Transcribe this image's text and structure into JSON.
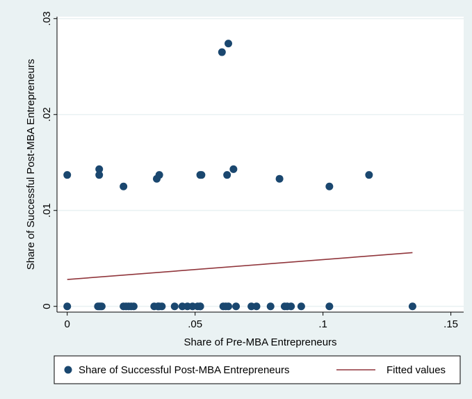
{
  "colors": {
    "outer_background": "#eaf2f3",
    "plot_background": "#ffffff",
    "grid": "#eaf2f3",
    "marker": "#1a476f",
    "fit_line": "#90353b",
    "axis": "#000000"
  },
  "chart_data": {
    "type": "scatter",
    "xlabel": "Share of Pre-MBA Entrepreneurs",
    "ylabel": "Share of Successful Post-MBA Entrepreneurs",
    "xlim": [
      -0.004,
      0.155
    ],
    "ylim": [
      -0.0006,
      0.0302
    ],
    "x_ticks": [
      0,
      0.05,
      0.1,
      0.15
    ],
    "x_tick_labels": [
      "0",
      ".05",
      ".1",
      ".15"
    ],
    "y_ticks": [
      0,
      0.01,
      0.02,
      0.03
    ],
    "y_tick_labels": [
      "0",
      ".01",
      ".02",
      ".03"
    ],
    "grid": "horizontal",
    "legend_position": "bottom",
    "series": [
      {
        "name": "Share of Successful Post-MBA Entrepreneurs",
        "kind": "scatter",
        "x": [
          0.0,
          0.0,
          0.0125,
          0.0125,
          0.012,
          0.0125,
          0.013,
          0.0135,
          0.022,
          0.022,
          0.023,
          0.024,
          0.025,
          0.026,
          0.034,
          0.035,
          0.0355,
          0.036,
          0.036,
          0.037,
          0.0355,
          0.042,
          0.045,
          0.047,
          0.049,
          0.051,
          0.052,
          0.0525,
          0.052,
          0.052,
          0.0605,
          0.061,
          0.0625,
          0.063,
          0.062,
          0.063,
          0.065,
          0.066,
          0.072,
          0.074,
          0.0795,
          0.083,
          0.085,
          0.086,
          0.0875,
          0.0915,
          0.1025,
          0.1025,
          0.118,
          0.135
        ],
        "y": [
          0.0137,
          0.0,
          0.0143,
          0.0137,
          0.0,
          0.0,
          0.0,
          0.0,
          0.0125,
          0.0,
          0.0,
          0.0,
          0.0,
          0.0,
          0.0,
          0.0133,
          0.0,
          0.0137,
          0.0,
          0.0,
          0.0,
          0.0,
          0.0,
          0.0,
          0.0,
          0.0,
          0.0137,
          0.0137,
          0.0,
          0.0,
          0.0265,
          0.0,
          0.0137,
          0.0274,
          0.0,
          0.0,
          0.0143,
          0.0,
          0.0,
          0.0,
          0.0,
          0.0133,
          0.0,
          0.0,
          0.0,
          0.0,
          0.0125,
          0.0,
          0.0137,
          0.0
        ]
      },
      {
        "name": "Fitted values",
        "kind": "line",
        "x": [
          0.0,
          0.135
        ],
        "y": [
          0.0028,
          0.0056
        ]
      }
    ]
  }
}
